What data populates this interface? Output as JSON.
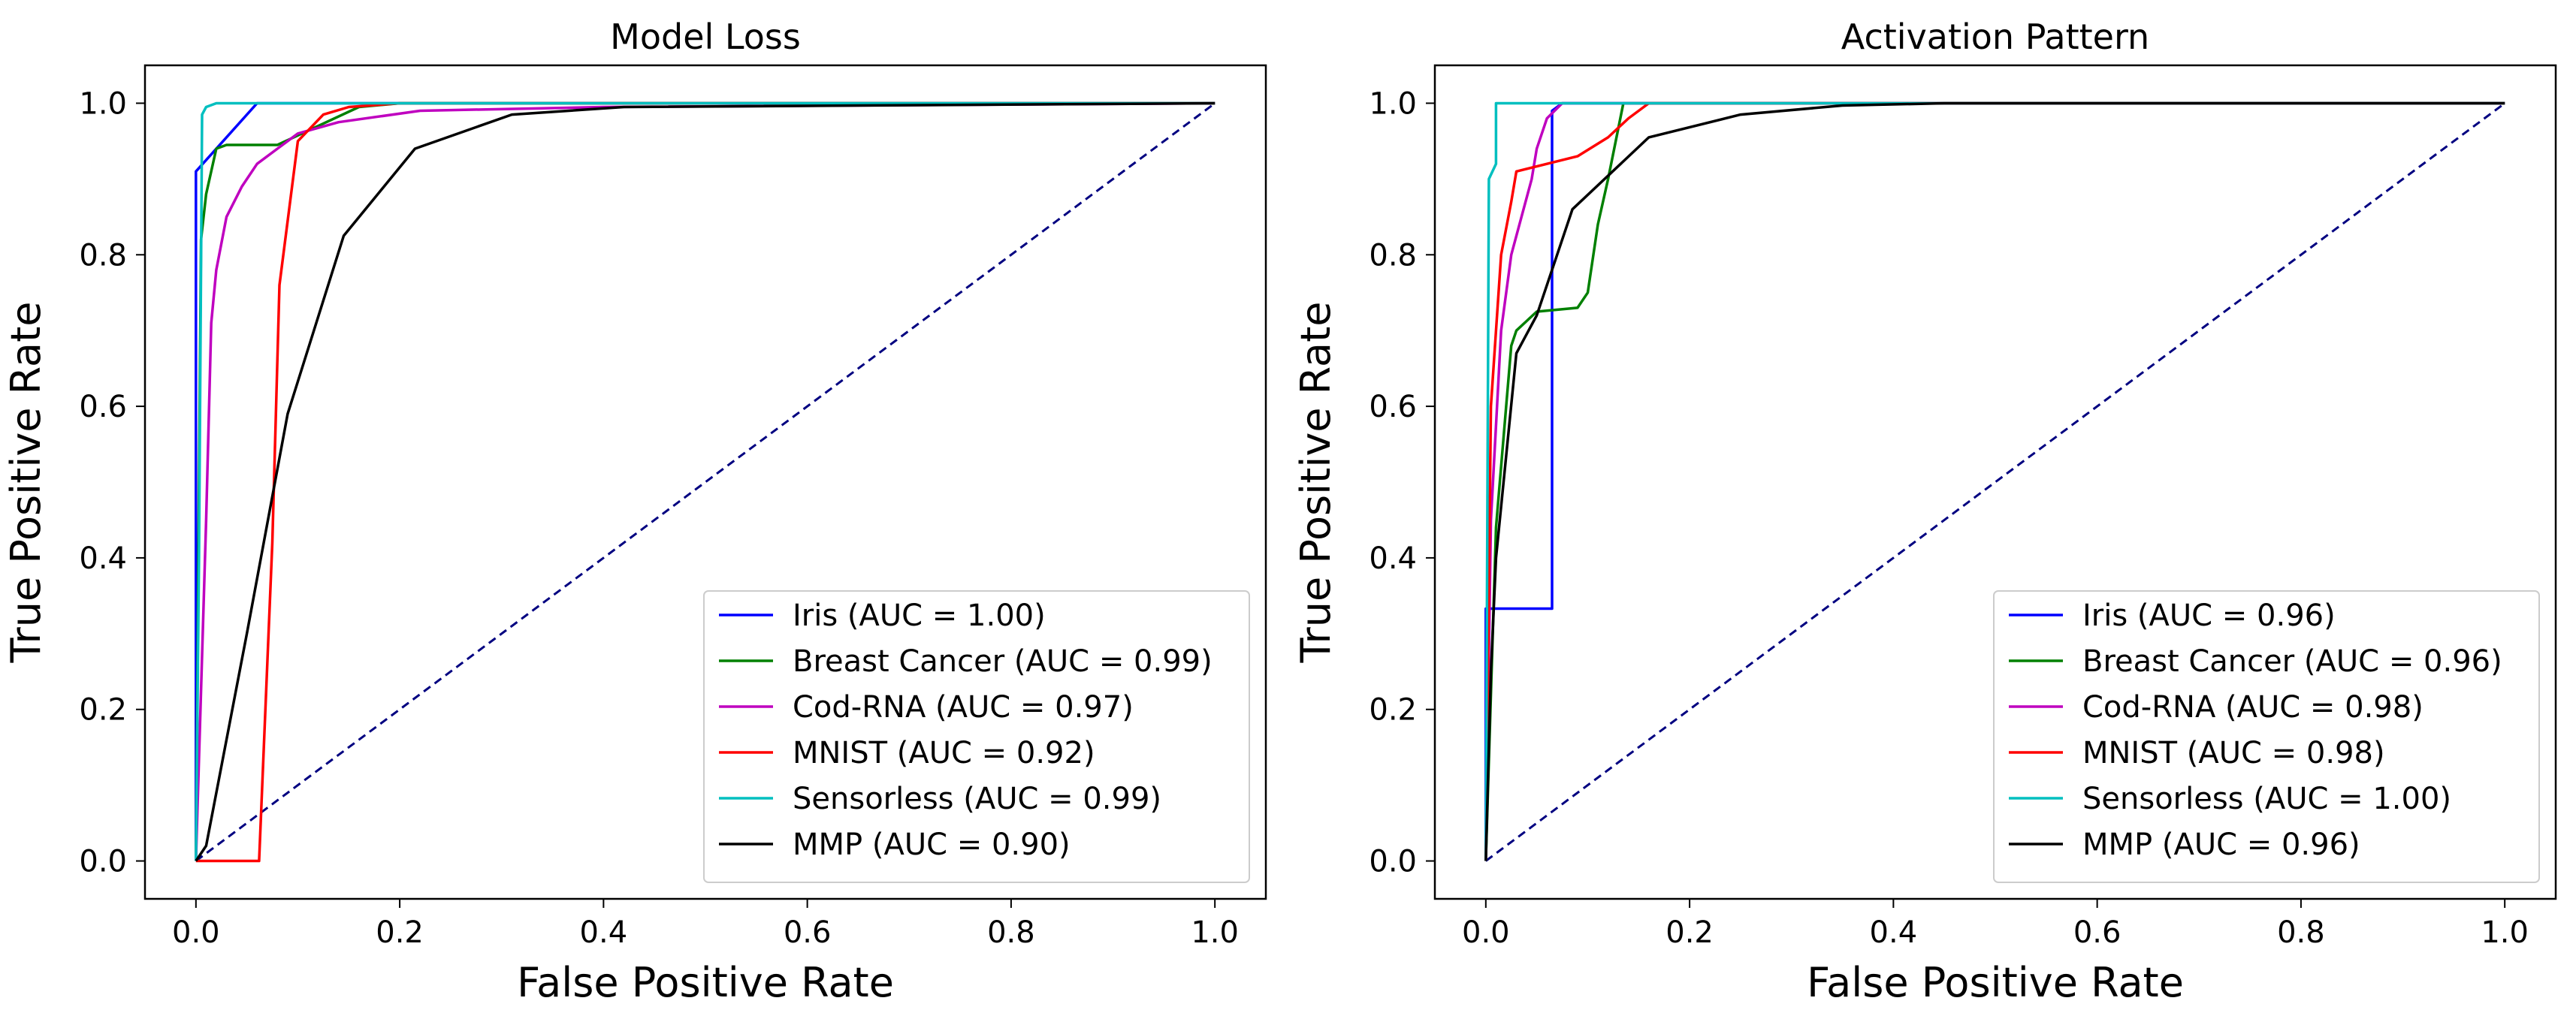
{
  "chart_data": [
    {
      "type": "line",
      "title": "Model Loss",
      "xlabel": "False Positive Rate",
      "ylabel": "True Positive Rate",
      "xlim": [
        -0.05,
        1.05
      ],
      "ylim": [
        -0.05,
        1.05
      ],
      "xticks": [
        "0.0",
        "0.2",
        "0.4",
        "0.6",
        "0.8",
        "1.0"
      ],
      "yticks": [
        "0.0",
        "0.2",
        "0.4",
        "0.6",
        "0.8",
        "1.0"
      ],
      "grid": false,
      "legend_position": "lower-right",
      "series": [
        {
          "name": "Iris (AUC = 1.00)",
          "color": "#0000ff",
          "x": [
            0,
            0,
            0.06,
            1.0
          ],
          "y": [
            0,
            0.91,
            1.0,
            1.0
          ]
        },
        {
          "name": "Breast Cancer (AUC = 0.99)",
          "color": "#008000",
          "x": [
            0,
            0.005,
            0.01,
            0.02,
            0.03,
            0.08,
            0.12,
            0.16,
            0.2,
            1.0
          ],
          "y": [
            0,
            0.82,
            0.88,
            0.94,
            0.945,
            0.945,
            0.97,
            0.995,
            1.0,
            1.0
          ]
        },
        {
          "name": "Cod-RNA (AUC = 0.97)",
          "color": "#bf00bf",
          "x": [
            0,
            0.01,
            0.015,
            0.02,
            0.03,
            0.045,
            0.06,
            0.08,
            0.1,
            0.14,
            0.22,
            0.4,
            1.0
          ],
          "y": [
            0,
            0.45,
            0.71,
            0.78,
            0.85,
            0.89,
            0.92,
            0.94,
            0.96,
            0.975,
            0.99,
            0.995,
            1.0
          ]
        },
        {
          "name": "MNIST (AUC = 0.92)",
          "color": "#ff0000",
          "x": [
            0,
            0.062,
            0.075,
            0.082,
            0.1,
            0.125,
            0.15,
            0.2,
            1.0
          ],
          "y": [
            0,
            0,
            0.42,
            0.76,
            0.95,
            0.985,
            0.995,
            1.0,
            1.0
          ]
        },
        {
          "name": "Sensorless (AUC = 0.99)",
          "color": "#00bfbf",
          "x": [
            0,
            0.003,
            0.006,
            0.01,
            0.02,
            0.05,
            1.0
          ],
          "y": [
            0,
            0.4,
            0.985,
            0.995,
            1.0,
            1.0,
            1.0
          ]
        },
        {
          "name": "MMP (AUC = 0.90)",
          "color": "#000000",
          "x": [
            0,
            0.01,
            0.05,
            0.09,
            0.145,
            0.215,
            0.31,
            0.42,
            1.0
          ],
          "y": [
            0,
            0.02,
            0.3,
            0.59,
            0.825,
            0.94,
            0.985,
            0.995,
            1.0
          ]
        },
        {
          "name": "",
          "color": "#000080",
          "dashed": true,
          "x": [
            0,
            1
          ],
          "y": [
            0,
            1
          ]
        }
      ]
    },
    {
      "type": "line",
      "title": "Activation Pattern",
      "xlabel": "False Positive Rate",
      "ylabel": "True Positive Rate",
      "xlim": [
        -0.05,
        1.05
      ],
      "ylim": [
        -0.05,
        1.05
      ],
      "xticks": [
        "0.0",
        "0.2",
        "0.4",
        "0.6",
        "0.8",
        "1.0"
      ],
      "yticks": [
        "0.0",
        "0.2",
        "0.4",
        "0.6",
        "0.8",
        "1.0"
      ],
      "grid": false,
      "legend_position": "lower-right",
      "series": [
        {
          "name": "Iris (AUC = 0.96)",
          "color": "#0000ff",
          "x": [
            0,
            0,
            0.065,
            0.065,
            0.075,
            1.0
          ],
          "y": [
            0,
            0.333,
            0.333,
            0.99,
            1.0,
            1.0
          ]
        },
        {
          "name": "Breast Cancer (AUC = 0.96)",
          "color": "#008000",
          "x": [
            0,
            0.01,
            0.02,
            0.025,
            0.03,
            0.05,
            0.09,
            0.1,
            0.11,
            0.12,
            0.135,
            1.0
          ],
          "y": [
            0,
            0.44,
            0.6,
            0.68,
            0.7,
            0.725,
            0.73,
            0.75,
            0.84,
            0.9,
            1.0,
            1.0
          ]
        },
        {
          "name": "Cod-RNA (AUC = 0.98)",
          "color": "#bf00bf",
          "x": [
            0,
            0.005,
            0.015,
            0.025,
            0.035,
            0.045,
            0.05,
            0.06,
            0.075,
            1.0
          ],
          "y": [
            0,
            0.45,
            0.7,
            0.8,
            0.85,
            0.9,
            0.94,
            0.98,
            1.0,
            1.0
          ]
        },
        {
          "name": "MNIST (AUC = 0.98)",
          "color": "#ff0000",
          "x": [
            0,
            0.005,
            0.015,
            0.025,
            0.03,
            0.06,
            0.09,
            0.12,
            0.14,
            0.16,
            1.0
          ],
          "y": [
            0,
            0.6,
            0.8,
            0.87,
            0.91,
            0.92,
            0.93,
            0.955,
            0.98,
            1.0,
            1.0
          ]
        },
        {
          "name": "Sensorless (AUC = 1.00)",
          "color": "#00bfbf",
          "x": [
            0,
            0.003,
            0.01,
            0.01,
            0.02,
            1.0
          ],
          "y": [
            0,
            0.9,
            0.92,
            1.0,
            1.0,
            1.0
          ]
        },
        {
          "name": "MMP (AUC = 0.96)",
          "color": "#000000",
          "x": [
            0,
            0.005,
            0.01,
            0.03,
            0.05,
            0.085,
            0.16,
            0.25,
            0.35,
            0.45,
            1.0
          ],
          "y": [
            0,
            0.25,
            0.4,
            0.67,
            0.72,
            0.86,
            0.955,
            0.985,
            0.997,
            1.0,
            1.0
          ]
        },
        {
          "name": "",
          "color": "#000080",
          "dashed": true,
          "x": [
            0,
            1
          ],
          "y": [
            0,
            1
          ]
        }
      ]
    }
  ]
}
